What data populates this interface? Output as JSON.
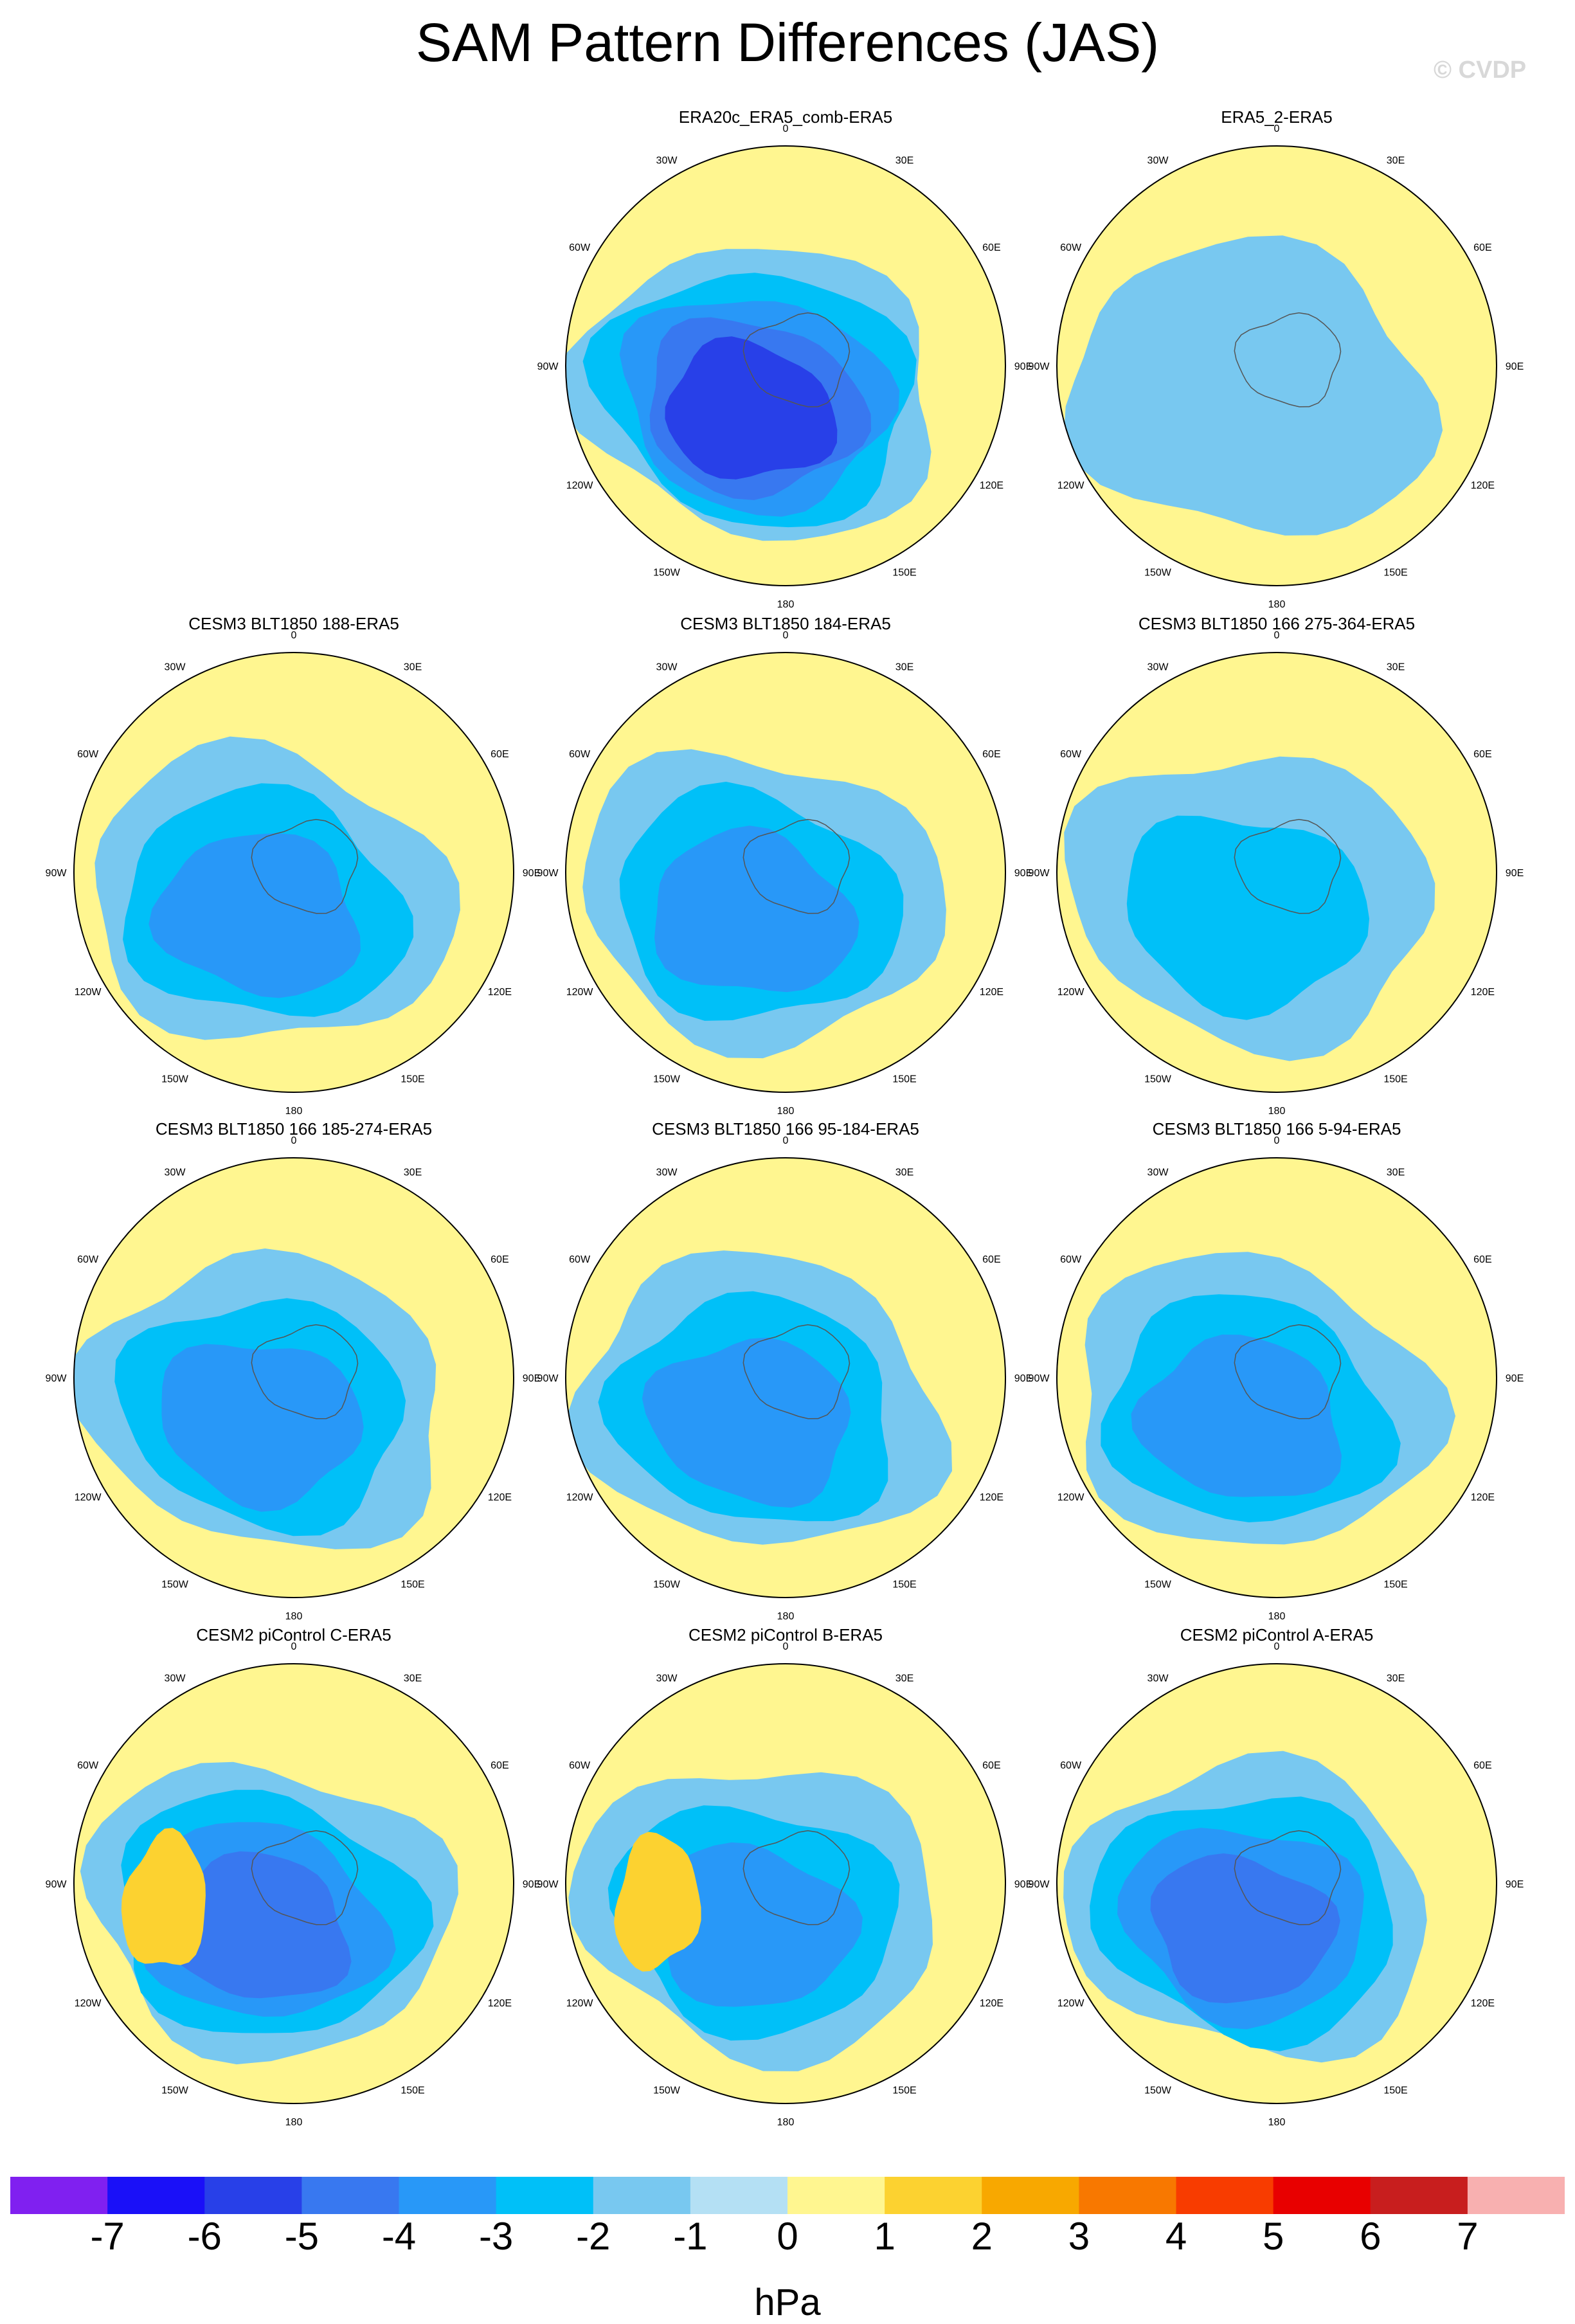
{
  "title": "SAM Pattern Differences (JAS)",
  "watermark": "© CVDP",
  "longitude_labels": {
    "top": "0",
    "bottom": "180",
    "upper_left": "30W",
    "upper_right": "30E",
    "left_upper": "60W",
    "right_upper": "60E",
    "left": "90W",
    "right": "90E",
    "left_lower": "120W",
    "right_lower": "120E",
    "lower_left": "150W",
    "lower_right": "150E"
  },
  "panels": [
    {
      "title": "ERA20c_ERA5_comb-ERA5",
      "min_level": -5
    },
    {
      "title": "ERA5_2-ERA5",
      "min_level": -1
    },
    {
      "title": "CESM3 BLT1850 188-ERA5",
      "min_level": -3,
      "max_level": 1
    },
    {
      "title": "CESM3 BLT1850 184-ERA5",
      "min_level": -3,
      "max_level": 1
    },
    {
      "title": "CESM3 BLT1850 166 275-364-ERA5",
      "min_level": -2
    },
    {
      "title": "CESM3 BLT1850 166 185-274-ERA5",
      "min_level": -3
    },
    {
      "title": "CESM3 BLT1850 166 95-184-ERA5",
      "min_level": -3,
      "max_level": 1
    },
    {
      "title": "CESM3 BLT1850 166 5-94-ERA5",
      "min_level": -3,
      "max_level": 1
    },
    {
      "title": "CESM2 piControl C-ERA5",
      "min_level": -4,
      "max_level": 2
    },
    {
      "title": "CESM2 piControl B-ERA5",
      "min_level": -3,
      "max_level": 2
    },
    {
      "title": "CESM2 piControl A-ERA5",
      "min_level": -4,
      "max_level": 1
    }
  ],
  "colorbar": {
    "labels": [
      "-7",
      "-6",
      "-5",
      "-4",
      "-3",
      "-2",
      "-1",
      "0",
      "1",
      "2",
      "3",
      "4",
      "5",
      "6",
      "7"
    ],
    "colors": [
      "#8020f0",
      "#1a10f8",
      "#2840e8",
      "#3878f0",
      "#2898f8",
      "#00c0f8",
      "#78c8f0",
      "#b4e0f4",
      "#fff690",
      "#fcd230",
      "#f8a800",
      "#f87800",
      "#f83c00",
      "#e80000",
      "#c81e1e",
      "#f8b0b0"
    ],
    "units": "hPa"
  }
}
